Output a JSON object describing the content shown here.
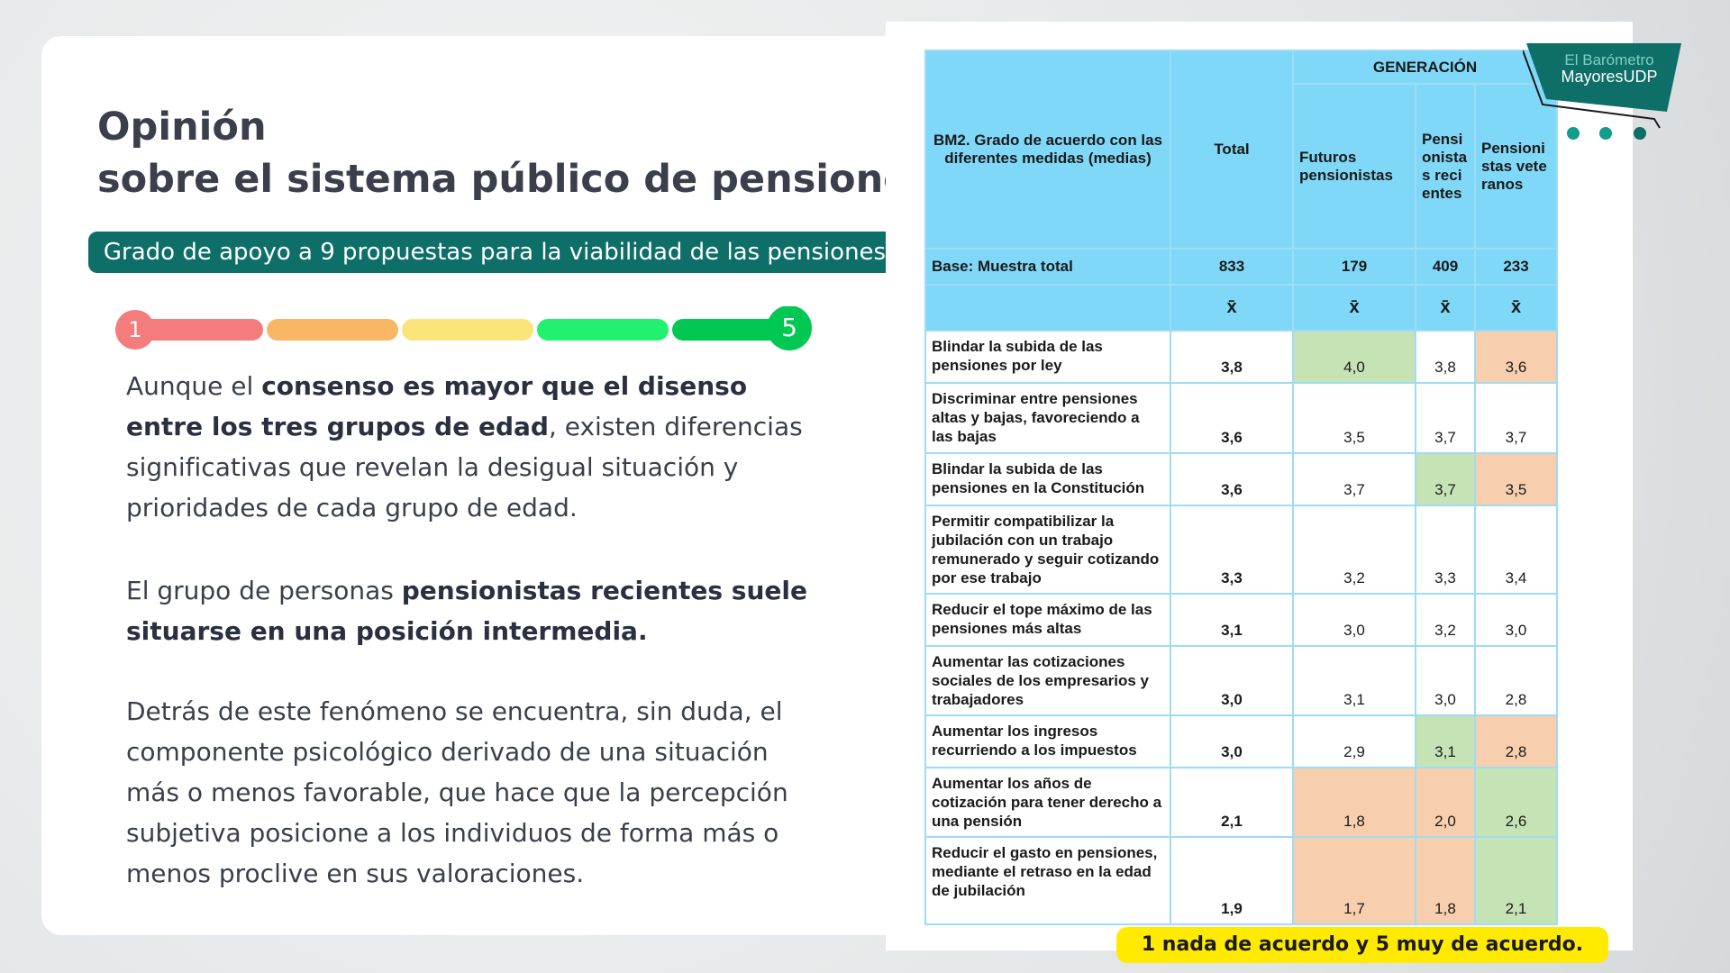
{
  "header": {
    "title_line_1": "Opinión",
    "title_line_2": "sobre el sistema público de pensiones"
  },
  "badge": "Grado de apoyo a 9 propuestas para la viabilidad de las pensiones",
  "scale": {
    "min_label": "1",
    "max_label": "5"
  },
  "paragraphs": [
    [
      {
        "text": "Aunque el "
      },
      {
        "text": "consenso es mayor que el disenso entre los tres grupos de edad",
        "bold": true
      },
      {
        "text": ", existen diferencias significativas que revelan la desigual situación y prioridades de cada grupo de edad."
      }
    ],
    [
      {
        "text": "El grupo de personas "
      },
      {
        "text": "pensionistas recientes suele situarse en una posición intermedia.",
        "bold": true
      }
    ],
    [
      {
        "text": "Detrás de este fenómeno se encuentra, sin duda, el componente psicológico derivado de una situación más o menos favorable, que hace que la percepción subjetiva posicione a los individuos de forma más o menos proclive en sus valoraciones."
      }
    ]
  ],
  "logo": {
    "line_1": "El Barómetro",
    "line_2": "MayoresUDP"
  },
  "table": {
    "question": "BM2. Grado de acuerdo con las diferentes medidas (medias)",
    "total": "Total",
    "group": "GENERACIÓN",
    "subgroups": [
      "Futuros pensionistas",
      "Pensionistas recientes",
      "Pensionistas veteranos"
    ],
    "base_row": [
      "Base: Muestra total",
      "833",
      "179",
      "409",
      "233"
    ],
    "symbol_row": [
      "x̄",
      "x̄",
      "x̄",
      "x̄"
    ],
    "highlight_colors": {
      "g": "#c6e3b6",
      "o": "#f8cfae"
    },
    "rows": [
      {
        "label": "Blindar la subida de las pensiones por ley",
        "values": [
          "3,8",
          "4,0",
          "3,8",
          "3,6"
        ],
        "highlight": [
          "",
          "g",
          "",
          "o"
        ]
      },
      {
        "label": "Discriminar entre pensiones altas y bajas, favoreciendo a las bajas",
        "values": [
          "3,6",
          "3,5",
          "3,7",
          "3,7"
        ],
        "highlight": [
          "",
          "",
          "",
          ""
        ]
      },
      {
        "label": "Blindar la subida de las pensiones en la Constitución",
        "values": [
          "3,6",
          "3,7",
          "3,7",
          "3,5"
        ],
        "highlight": [
          "",
          "",
          "g",
          "o"
        ]
      },
      {
        "label": "Permitir compatibilizar la jubilación con un trabajo remunerado y seguir cotizando por ese trabajo",
        "values": [
          "3,3",
          "3,2",
          "3,3",
          "3,4"
        ],
        "highlight": [
          "",
          "",
          "",
          ""
        ]
      },
      {
        "label": "Reducir el tope máximo de las pensiones más altas",
        "values": [
          "3,1",
          "3,0",
          "3,2",
          "3,0"
        ],
        "highlight": [
          "",
          "",
          "",
          ""
        ]
      },
      {
        "label": "Aumentar las cotizaciones sociales de los empresarios y trabajadores",
        "values": [
          "3,0",
          "3,1",
          "3,0",
          "2,8"
        ],
        "highlight": [
          "",
          "",
          "",
          ""
        ]
      },
      {
        "label": "Aumentar los ingresos recurriendo a los impuestos",
        "values": [
          "3,0",
          "2,9",
          "3,1",
          "2,8"
        ],
        "highlight": [
          "",
          "",
          "g",
          "o"
        ]
      },
      {
        "label": "Aumentar los años de cotización para tener derecho a una pensión",
        "values": [
          "2,1",
          "1,8",
          "2,0",
          "2,6"
        ],
        "highlight": [
          "",
          "o",
          "o",
          "g"
        ]
      },
      {
        "label": "Reducir el gasto en pensiones, mediante el retraso en la edad de jubilación",
        "values": [
          "1,9",
          "1,7",
          "1,8",
          "2,1"
        ],
        "highlight": [
          "",
          "o",
          "o",
          "g"
        ]
      }
    ]
  },
  "footnote": "1 nada de acuerdo y 5 muy de acuerdo."
}
